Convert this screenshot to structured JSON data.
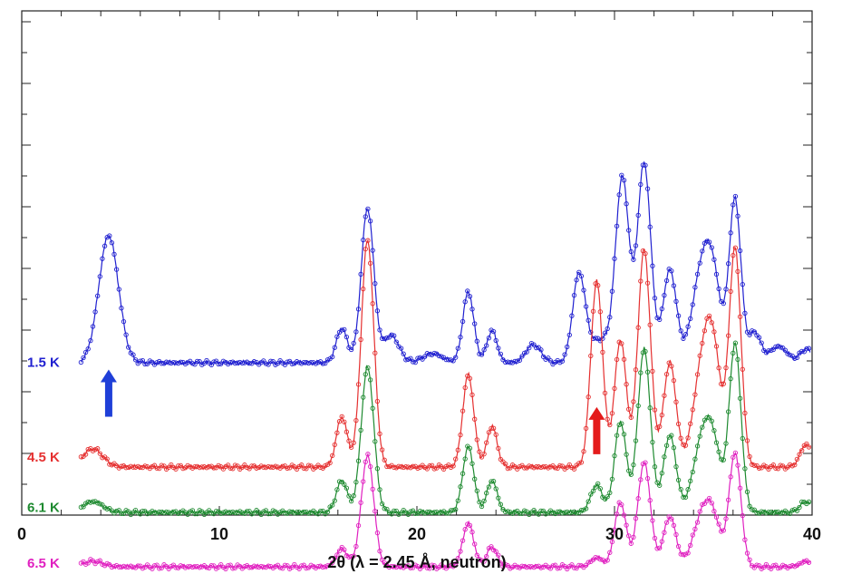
{
  "chart_data": {
    "type": "line",
    "xlabel": "2θ (λ = 2.45 Å, neutron)",
    "xlim": [
      0,
      40
    ],
    "x_ticks": [
      0,
      10,
      20,
      30,
      40
    ],
    "x_tick_labels": [
      "0",
      "10",
      "20",
      "30",
      "40"
    ],
    "y_ticks_labeled": false,
    "stacked_offsets": true,
    "series": [
      {
        "name": "1.5 K",
        "color": "#2020d0",
        "baseline": 0.0,
        "offset": 0.6,
        "peaks": [
          [
            4.4,
            1.4,
            0.5
          ],
          [
            16.2,
            0.38,
            0.28
          ],
          [
            17.5,
            1.7,
            0.32
          ],
          [
            18.7,
            0.3,
            0.4
          ],
          [
            20.8,
            0.1,
            0.5
          ],
          [
            22.6,
            0.78,
            0.28
          ],
          [
            23.8,
            0.35,
            0.26
          ],
          [
            25.9,
            0.2,
            0.38
          ],
          [
            28.2,
            0.95,
            0.32
          ],
          [
            29.3,
            0.25,
            0.6
          ],
          [
            30.4,
            2.0,
            0.34
          ],
          [
            31.5,
            2.2,
            0.34
          ],
          [
            32.8,
            1.02,
            0.34
          ],
          [
            34.4,
            0.95,
            0.48
          ],
          [
            35.0,
            0.75,
            0.4
          ],
          [
            36.1,
            1.8,
            0.3
          ],
          [
            37.1,
            0.33,
            0.3
          ],
          [
            38.3,
            0.18,
            0.45
          ],
          [
            39.7,
            0.15,
            0.3
          ]
        ]
      },
      {
        "name": "4.5 K",
        "color": "#e53030",
        "baseline": 0.0,
        "offset": -0.55,
        "peaks": [
          [
            3.6,
            0.2,
            0.5
          ],
          [
            16.2,
            0.55,
            0.28
          ],
          [
            17.5,
            2.5,
            0.32
          ],
          [
            22.6,
            1.02,
            0.28
          ],
          [
            23.8,
            0.45,
            0.26
          ],
          [
            29.1,
            2.05,
            0.3
          ],
          [
            30.3,
            1.4,
            0.3
          ],
          [
            31.5,
            2.4,
            0.32
          ],
          [
            32.8,
            1.15,
            0.32
          ],
          [
            34.4,
            0.95,
            0.45
          ],
          [
            35.0,
            1.15,
            0.4
          ],
          [
            36.1,
            2.4,
            0.3
          ],
          [
            39.7,
            0.25,
            0.3
          ]
        ]
      },
      {
        "name": "6.1 K",
        "color": "#1e8a30",
        "baseline": 0.0,
        "offset": -1.05,
        "peaks": [
          [
            3.6,
            0.12,
            0.5
          ],
          [
            16.2,
            0.35,
            0.28
          ],
          [
            17.5,
            1.6,
            0.32
          ],
          [
            22.6,
            0.72,
            0.28
          ],
          [
            23.8,
            0.35,
            0.26
          ],
          [
            29.1,
            0.3,
            0.3
          ],
          [
            30.3,
            1.0,
            0.3
          ],
          [
            31.5,
            1.8,
            0.32
          ],
          [
            32.8,
            0.85,
            0.32
          ],
          [
            34.4,
            0.7,
            0.45
          ],
          [
            35.0,
            0.65,
            0.4
          ],
          [
            36.1,
            1.85,
            0.3
          ],
          [
            39.7,
            0.12,
            0.3
          ]
        ]
      },
      {
        "name": "6.5 K",
        "color": "#e020c0",
        "baseline": 0.0,
        "offset": -1.65,
        "peaks": [
          [
            3.6,
            0.06,
            0.5
          ],
          [
            16.2,
            0.2,
            0.28
          ],
          [
            17.5,
            1.22,
            0.32
          ],
          [
            22.6,
            0.48,
            0.28
          ],
          [
            23.8,
            0.22,
            0.26
          ],
          [
            29.1,
            0.1,
            0.3
          ],
          [
            30.3,
            0.7,
            0.3
          ],
          [
            31.5,
            1.15,
            0.32
          ],
          [
            32.8,
            0.55,
            0.32
          ],
          [
            34.4,
            0.5,
            0.45
          ],
          [
            35.0,
            0.45,
            0.4
          ],
          [
            36.1,
            1.25,
            0.3
          ],
          [
            39.7,
            0.06,
            0.3
          ]
        ]
      }
    ],
    "annotations": [
      {
        "type": "arrow",
        "color": "#1f3fd8",
        "x": 4.4,
        "direction": "up",
        "series": "1.5 K"
      },
      {
        "type": "arrow",
        "color": "#e41b1b",
        "x": 29.1,
        "direction": "up",
        "series": "4.5 K"
      }
    ],
    "grid": false
  }
}
